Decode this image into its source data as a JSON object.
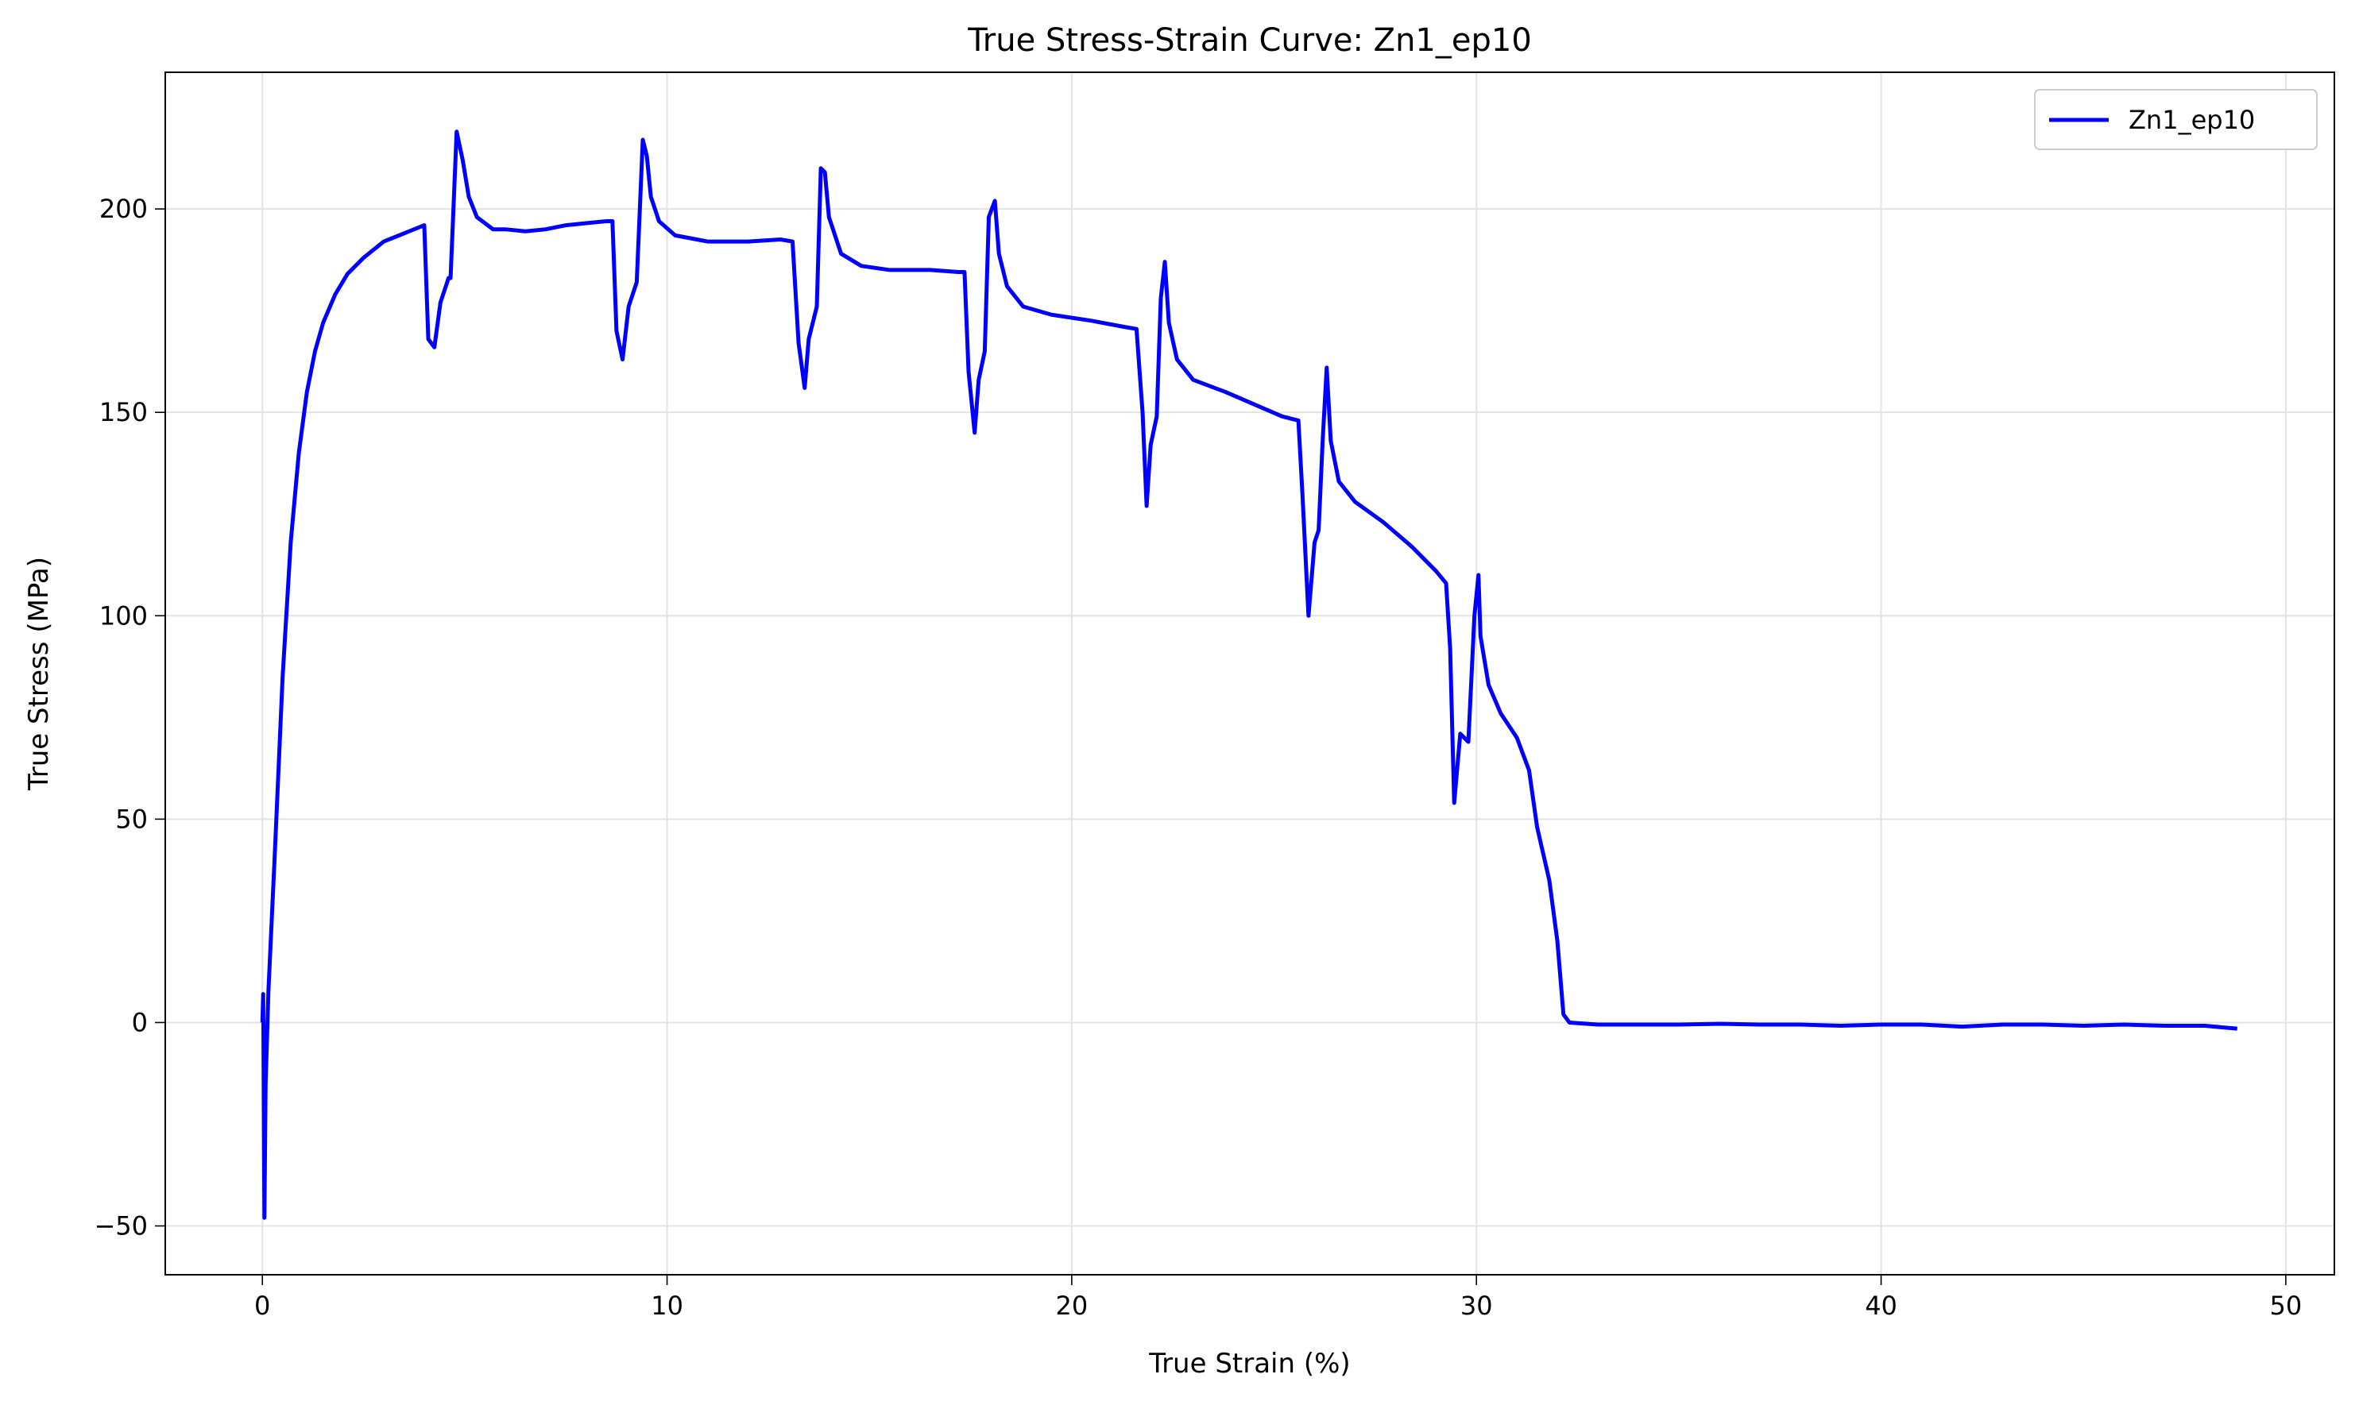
{
  "chart_data": {
    "type": "line",
    "title": "True Stress-Strain Curve: Zn1_ep10",
    "xlabel": "True Strain (%)",
    "ylabel": "True Stress (MPa)",
    "x": [
      0,
      0.02,
      0.05,
      0.08,
      0.15,
      0.3,
      0.5,
      0.7,
      0.9,
      1.1,
      1.3,
      1.5,
      1.8,
      2.1,
      2.5,
      3.0,
      3.5,
      4.0,
      4.1,
      4.25,
      4.4,
      4.6,
      4.65,
      4.8,
      4.95,
      5.1,
      5.3,
      5.7,
      6.0,
      6.5,
      7.0,
      7.5,
      8.0,
      8.5,
      8.65,
      8.75,
      8.9,
      9.05,
      9.25,
      9.4,
      9.5,
      9.6,
      9.8,
      10.2,
      11,
      12,
      12.8,
      13.1,
      13.25,
      13.4,
      13.5,
      13.7,
      13.8,
      13.9,
      14.0,
      14.3,
      14.8,
      15.5,
      16.5,
      17.2,
      17.35,
      17.45,
      17.6,
      17.7,
      17.85,
      17.95,
      18.1,
      18.2,
      18.4,
      18.8,
      19.5,
      20.5,
      21.3,
      21.6,
      21.75,
      21.85,
      21.95,
      22.1,
      22.2,
      22.3,
      22.4,
      22.6,
      23.0,
      23.8,
      24.5,
      25.2,
      25.6,
      25.7,
      25.85,
      26.0,
      26.1,
      26.2,
      26.3,
      26.4,
      26.6,
      27.0,
      27.7,
      28.4,
      29.0,
      29.25,
      29.35,
      29.45,
      29.6,
      29.8,
      29.95,
      30.05,
      30.1,
      30.3,
      30.6,
      31.0,
      31.3,
      31.5,
      31.8,
      32.0,
      32.15,
      32.3,
      33,
      34,
      35,
      36,
      37,
      38,
      39,
      40,
      41,
      42,
      43,
      44,
      45,
      46,
      47,
      48,
      48.8
    ],
    "series": [
      {
        "name": "Zn1_ep10",
        "color": "#0000ff",
        "values": [
          0,
          7,
          -48,
          -15,
          8,
          40,
          85,
          118,
          140,
          155,
          165,
          172,
          179,
          184,
          188,
          192,
          194,
          196,
          168,
          166,
          177,
          183,
          183,
          219,
          212,
          203,
          198,
          195,
          195,
          194.5,
          195,
          196,
          196.5,
          197,
          197,
          170,
          163,
          176,
          182,
          217,
          213,
          203,
          197,
          193.5,
          192,
          192,
          192.5,
          192,
          167,
          156,
          168,
          176,
          210,
          209,
          198,
          189,
          186,
          185,
          185,
          184.5,
          184.5,
          160,
          145,
          158,
          165,
          198,
          202,
          189,
          181,
          176,
          174,
          172.5,
          171,
          170.5,
          150,
          127,
          142,
          149,
          178,
          187,
          172,
          163,
          158,
          155,
          152,
          149,
          148,
          130,
          100,
          118,
          121,
          143,
          161,
          143,
          133,
          128,
          123,
          117,
          111,
          108,
          92,
          54,
          71,
          69,
          100,
          110,
          95,
          83,
          76,
          70,
          62,
          48,
          35,
          20,
          2,
          0,
          -0.5,
          -0.5,
          -0.5,
          -0.3,
          -0.5,
          -0.5,
          -0.8,
          -0.5,
          -0.5,
          -1,
          -0.5,
          -0.5,
          -0.8,
          -0.5,
          -0.8,
          -0.8,
          -1.5
        ]
      }
    ],
    "xlim": [
      -2.4,
      51.2
    ],
    "ylim": [
      -62,
      233.6
    ],
    "xticks": [
      0,
      10,
      20,
      30,
      40,
      50
    ],
    "yticks": [
      {
        "value": -50,
        "label": "−50"
      },
      0,
      50,
      100,
      150,
      200
    ],
    "grid": true,
    "legend": "upper right"
  }
}
